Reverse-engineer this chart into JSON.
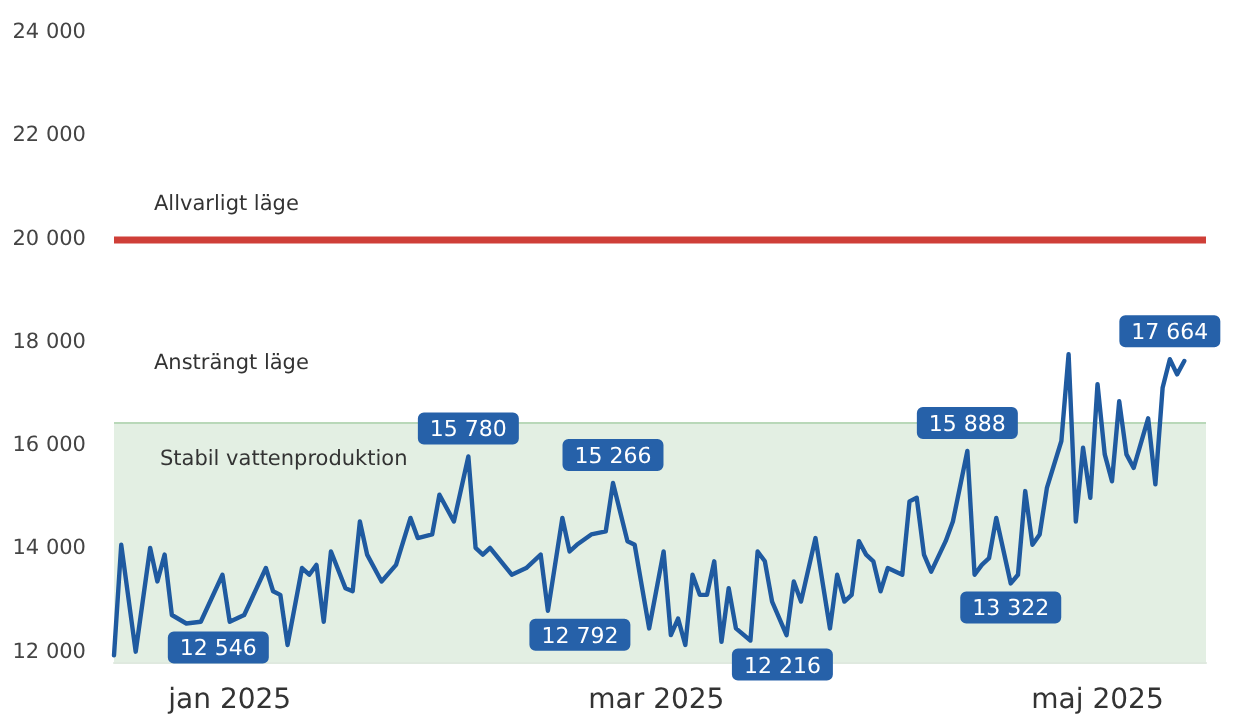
{
  "chart_data": {
    "type": "line",
    "x": [
      "2024-12-16",
      "2024-12-17",
      "2024-12-19",
      "2024-12-21",
      "2024-12-22",
      "2024-12-23",
      "2024-12-24",
      "2024-12-26",
      "2024-12-28",
      "2024-12-31",
      "2025-01-01",
      "2025-01-03",
      "2025-01-06",
      "2025-01-07",
      "2025-01-08",
      "2025-01-09",
      "2025-01-11",
      "2025-01-12",
      "2025-01-13",
      "2025-01-14",
      "2025-01-15",
      "2025-01-17",
      "2025-01-18",
      "2025-01-19",
      "2025-01-20",
      "2025-01-22",
      "2025-01-24",
      "2025-01-26",
      "2025-01-27",
      "2025-01-29",
      "2025-01-30",
      "2025-02-01",
      "2025-02-03",
      "2025-02-04",
      "2025-02-05",
      "2025-02-06",
      "2025-02-09",
      "2025-02-11",
      "2025-02-13",
      "2025-02-14",
      "2025-02-16",
      "2025-02-17",
      "2025-02-18",
      "2025-02-20",
      "2025-02-22",
      "2025-02-23",
      "2025-02-25",
      "2025-02-26",
      "2025-02-28",
      "2025-03-02",
      "2025-03-03",
      "2025-03-04",
      "2025-03-05",
      "2025-03-06",
      "2025-03-07",
      "2025-03-08",
      "2025-03-09",
      "2025-03-10",
      "2025-03-11",
      "2025-03-12",
      "2025-03-14",
      "2025-03-15",
      "2025-03-16",
      "2025-03-17",
      "2025-03-19",
      "2025-03-20",
      "2025-03-21",
      "2025-03-23",
      "2025-03-25",
      "2025-03-26",
      "2025-03-27",
      "2025-03-28",
      "2025-03-29",
      "2025-03-30",
      "2025-03-31",
      "2025-04-01",
      "2025-04-02",
      "2025-04-04",
      "2025-04-05",
      "2025-04-06",
      "2025-04-07",
      "2025-04-08",
      "2025-04-10",
      "2025-04-11",
      "2025-04-13",
      "2025-04-14",
      "2025-04-15",
      "2025-04-16",
      "2025-04-17",
      "2025-04-19",
      "2025-04-20",
      "2025-04-21",
      "2025-04-22",
      "2025-04-23",
      "2025-04-24",
      "2025-04-26",
      "2025-04-27",
      "2025-04-28",
      "2025-04-29",
      "2025-04-30",
      "2025-05-01",
      "2025-05-02",
      "2025-05-03",
      "2025-05-04",
      "2025-05-05",
      "2025-05-06",
      "2025-05-08",
      "2025-05-09",
      "2025-05-10",
      "2025-05-11",
      "2025-05-12",
      "2025-05-13"
    ],
    "series": [
      {
        "color": "#1f5aa0",
        "values": [
          11930,
          14070,
          12000,
          14010,
          13360,
          13880,
          12710,
          12546,
          12580,
          13490,
          12580,
          12710,
          13620,
          13170,
          13100,
          12130,
          13620,
          13490,
          13680,
          12580,
          13940,
          13230,
          13170,
          14520,
          13880,
          13360,
          13680,
          14590,
          14200,
          14270,
          15040,
          14520,
          15780,
          14010,
          13880,
          14010,
          13490,
          13620,
          13880,
          12792,
          14590,
          13940,
          14070,
          14270,
          14330,
          15266,
          14140,
          14070,
          12450,
          13940,
          12320,
          12640,
          12130,
          13490,
          13100,
          13100,
          13750,
          12190,
          13230,
          12450,
          12216,
          13940,
          13750,
          12970,
          12320,
          13360,
          12970,
          14200,
          12450,
          13490,
          12970,
          13100,
          14140,
          13880,
          13750,
          13170,
          13620,
          13490,
          14910,
          14980,
          13880,
          13550,
          14140,
          14520,
          15888,
          13490,
          13680,
          13810,
          14590,
          13322,
          13490,
          15110,
          14070,
          14270,
          15170,
          16080,
          17760,
          14520,
          15950,
          14980,
          17180,
          15820,
          15300,
          16850,
          15820,
          15560,
          16520,
          15240,
          17110,
          17664,
          17370,
          17630
        ],
        "value_labels": [
          null,
          null,
          null,
          null,
          null,
          null,
          null,
          "12 546",
          null,
          null,
          null,
          null,
          null,
          null,
          null,
          null,
          null,
          null,
          null,
          null,
          null,
          null,
          null,
          null,
          null,
          null,
          null,
          null,
          null,
          null,
          null,
          null,
          "15 780",
          null,
          null,
          null,
          null,
          null,
          null,
          "12 792",
          null,
          null,
          null,
          null,
          null,
          "15 266",
          null,
          null,
          null,
          null,
          null,
          null,
          null,
          null,
          null,
          null,
          null,
          null,
          null,
          null,
          "12 216",
          null,
          null,
          null,
          null,
          null,
          null,
          null,
          null,
          null,
          null,
          null,
          null,
          null,
          null,
          null,
          null,
          null,
          null,
          null,
          null,
          null,
          null,
          null,
          "15 888",
          null,
          null,
          null,
          null,
          "13 322",
          null,
          null,
          null,
          null,
          null,
          null,
          null,
          null,
          null,
          null,
          null,
          null,
          null,
          null,
          null,
          null,
          null,
          null,
          null,
          "17 664",
          null,
          null
        ]
      }
    ],
    "xlim": [
      "2024-12-16",
      "2025-05-16"
    ],
    "xticks": [
      {
        "value": "2025-01-01",
        "label": "jan 2025"
      },
      {
        "value": "2025-03-01",
        "label": "mar 2025"
      },
      {
        "value": "2025-05-01",
        "label": "maj 2025"
      }
    ],
    "ylim": [
      11800,
      24000
    ],
    "yticks": [
      {
        "value": 12000,
        "label": "12 000"
      },
      {
        "value": 14000,
        "label": "14 000"
      },
      {
        "value": 16000,
        "label": "16 000"
      },
      {
        "value": 18000,
        "label": "18 000"
      },
      {
        "value": 20000,
        "label": "20 000"
      },
      {
        "value": 22000,
        "label": "22 000"
      },
      {
        "value": 24000,
        "label": "24 000"
      }
    ],
    "bands": [
      {
        "axis": "y",
        "from": 11800,
        "to": 16450,
        "label": "Stabil vattenproduktion",
        "color": "#e3efe3"
      }
    ],
    "ref_lines": [
      {
        "axis": "y",
        "value": 16450,
        "label": "Ansträngt läge",
        "color": "#b9d8b9"
      },
      {
        "axis": "y",
        "value": 20000,
        "label": "Allvarligt läge",
        "color": "#cf3f38"
      }
    ],
    "grid": false,
    "marker": "none",
    "line_style": "solid"
  }
}
